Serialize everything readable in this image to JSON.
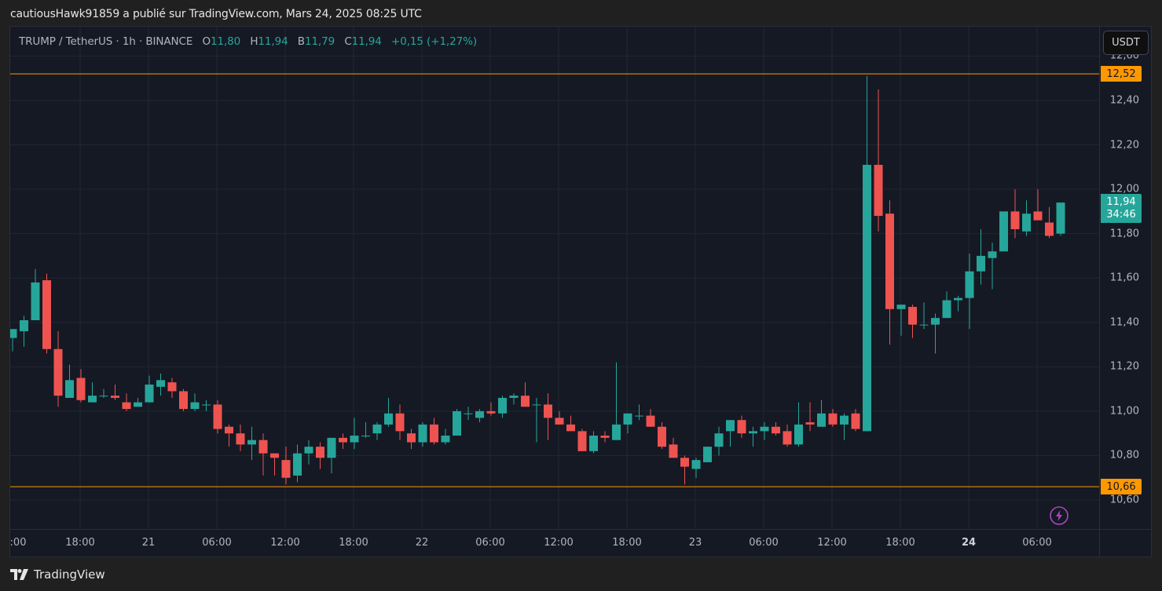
{
  "publisher_line": "cautiousHawk91859 a publié sur TradingView.com, Mars 24, 2025 08:25 UTC",
  "legend": {
    "symbol": "TRUMP / TetherUS · 1h · BINANCE",
    "o_label": "O",
    "o_value": "11,80",
    "h_label": "H",
    "h_value": "11,94",
    "b_label": "B",
    "b_value": "11,79",
    "c_label": "C",
    "c_value": "11,94",
    "change": "+0,15 (+1,27%)"
  },
  "currency_button": "USDT",
  "current_price": {
    "value": "11,94",
    "countdown": "34:46"
  },
  "horizontal_lines": [
    {
      "label": "12,52",
      "price": 12.52,
      "color": "#ff9800"
    },
    {
      "label": "10,66",
      "price": 10.66,
      "color": "#ff9800"
    }
  ],
  "price_ticks": [
    "12,60",
    "12,40",
    "12,20",
    "12,00",
    "11,80",
    "11,60",
    "11,40",
    "11,20",
    "11,00",
    "10,80",
    "10,60"
  ],
  "time_ticks": [
    {
      "label": ":00",
      "x": 13,
      "bold": false
    },
    {
      "label": "18:00",
      "x": 102,
      "bold": false
    },
    {
      "label": "21",
      "x": 189,
      "bold": false
    },
    {
      "label": "06:00",
      "x": 276,
      "bold": false
    },
    {
      "label": "12:00",
      "x": 363,
      "bold": false
    },
    {
      "label": "18:00",
      "x": 450,
      "bold": false
    },
    {
      "label": "22",
      "x": 537,
      "bold": false
    },
    {
      "label": "06:00",
      "x": 624,
      "bold": false
    },
    {
      "label": "12:00",
      "x": 711,
      "bold": false
    },
    {
      "label": "18:00",
      "x": 798,
      "bold": false
    },
    {
      "label": "23",
      "x": 885,
      "bold": false
    },
    {
      "label": "06:00",
      "x": 972,
      "bold": false
    },
    {
      "label": "12:00",
      "x": 1059,
      "bold": false
    },
    {
      "label": "18:00",
      "x": 1146,
      "bold": false
    },
    {
      "label": "24",
      "x": 1233,
      "bold": true
    },
    {
      "label": "06:00",
      "x": 1320,
      "bold": false
    }
  ],
  "footer": {
    "brand": "TradingView"
  },
  "colors": {
    "up": "#26a69a",
    "down": "#ef5350",
    "grid": "#232632",
    "background": "#151924",
    "level": "#ff9800",
    "alert": "#ab47bc"
  },
  "chart_data": {
    "type": "candlestick",
    "title": "TRUMP / TetherUS · 1h · BINANCE",
    "xlabel": "",
    "ylabel": "USDT",
    "ylim": [
      10.55,
      12.62
    ],
    "grid": true,
    "legend_position": "top-left",
    "x_start": "20 Mar 12:00",
    "interval": "1h",
    "x_ticks": [
      ":00",
      "18:00",
      "21",
      "06:00",
      "12:00",
      "18:00",
      "22",
      "06:00",
      "12:00",
      "18:00",
      "23",
      "06:00",
      "12:00",
      "18:00",
      "24",
      "06:00"
    ],
    "y_ticks": [
      10.6,
      10.8,
      11.0,
      11.2,
      11.4,
      11.6,
      11.8,
      12.0,
      12.2,
      12.4,
      12.6
    ],
    "levels": [
      12.52,
      10.66
    ],
    "last_price": 11.94,
    "candles": [
      {
        "o": 11.33,
        "h": 11.36,
        "l": 11.27,
        "c": 11.37
      },
      {
        "o": 11.36,
        "h": 11.43,
        "l": 11.29,
        "c": 11.41
      },
      {
        "o": 11.41,
        "h": 11.64,
        "l": 11.41,
        "c": 11.58
      },
      {
        "o": 11.59,
        "h": 11.62,
        "l": 11.26,
        "c": 11.28
      },
      {
        "o": 11.28,
        "h": 11.36,
        "l": 11.02,
        "c": 11.07
      },
      {
        "o": 11.06,
        "h": 11.21,
        "l": 11.06,
        "c": 11.14
      },
      {
        "o": 11.15,
        "h": 11.19,
        "l": 11.04,
        "c": 11.05
      },
      {
        "o": 11.04,
        "h": 11.13,
        "l": 11.04,
        "c": 11.07
      },
      {
        "o": 11.07,
        "h": 11.1,
        "l": 11.06,
        "c": 11.07
      },
      {
        "o": 11.07,
        "h": 11.12,
        "l": 11.05,
        "c": 11.06
      },
      {
        "o": 11.04,
        "h": 11.08,
        "l": 11.0,
        "c": 11.01
      },
      {
        "o": 11.02,
        "h": 11.06,
        "l": 11.02,
        "c": 11.04
      },
      {
        "o": 11.04,
        "h": 11.16,
        "l": 11.04,
        "c": 11.12
      },
      {
        "o": 11.11,
        "h": 11.17,
        "l": 11.07,
        "c": 11.14
      },
      {
        "o": 11.13,
        "h": 11.15,
        "l": 11.06,
        "c": 11.09
      },
      {
        "o": 11.09,
        "h": 11.1,
        "l": 11.0,
        "c": 11.01
      },
      {
        "o": 11.01,
        "h": 11.08,
        "l": 11.0,
        "c": 11.04
      },
      {
        "o": 11.03,
        "h": 11.05,
        "l": 11.0,
        "c": 11.03
      },
      {
        "o": 11.03,
        "h": 11.05,
        "l": 10.9,
        "c": 10.92
      },
      {
        "o": 10.93,
        "h": 10.94,
        "l": 10.84,
        "c": 10.9
      },
      {
        "o": 10.9,
        "h": 10.94,
        "l": 10.82,
        "c": 10.85
      },
      {
        "o": 10.85,
        "h": 10.93,
        "l": 10.78,
        "c": 10.87
      },
      {
        "o": 10.87,
        "h": 10.9,
        "l": 10.71,
        "c": 10.81
      },
      {
        "o": 10.81,
        "h": 10.81,
        "l": 10.71,
        "c": 10.79
      },
      {
        "o": 10.78,
        "h": 10.84,
        "l": 10.67,
        "c": 10.7
      },
      {
        "o": 10.71,
        "h": 10.85,
        "l": 10.68,
        "c": 10.81
      },
      {
        "o": 10.81,
        "h": 10.87,
        "l": 10.76,
        "c": 10.84
      },
      {
        "o": 10.84,
        "h": 10.86,
        "l": 10.74,
        "c": 10.79
      },
      {
        "o": 10.79,
        "h": 10.88,
        "l": 10.72,
        "c": 10.88
      },
      {
        "o": 10.88,
        "h": 10.9,
        "l": 10.83,
        "c": 10.86
      },
      {
        "o": 10.86,
        "h": 10.97,
        "l": 10.83,
        "c": 10.89
      },
      {
        "o": 10.89,
        "h": 10.95,
        "l": 10.88,
        "c": 10.89
      },
      {
        "o": 10.9,
        "h": 10.95,
        "l": 10.87,
        "c": 10.94
      },
      {
        "o": 10.94,
        "h": 11.06,
        "l": 10.93,
        "c": 10.99
      },
      {
        "o": 10.99,
        "h": 11.03,
        "l": 10.87,
        "c": 10.91
      },
      {
        "o": 10.9,
        "h": 10.92,
        "l": 10.83,
        "c": 10.86
      },
      {
        "o": 10.86,
        "h": 10.95,
        "l": 10.84,
        "c": 10.94
      },
      {
        "o": 10.94,
        "h": 10.97,
        "l": 10.85,
        "c": 10.86
      },
      {
        "o": 10.86,
        "h": 10.92,
        "l": 10.85,
        "c": 10.89
      },
      {
        "o": 10.89,
        "h": 11.01,
        "l": 10.89,
        "c": 11.0
      },
      {
        "o": 10.99,
        "h": 11.02,
        "l": 10.96,
        "c": 10.99
      },
      {
        "o": 10.97,
        "h": 11.01,
        "l": 10.95,
        "c": 11.0
      },
      {
        "o": 11.0,
        "h": 11.04,
        "l": 10.98,
        "c": 10.99
      },
      {
        "o": 10.99,
        "h": 11.07,
        "l": 10.97,
        "c": 11.06
      },
      {
        "o": 11.06,
        "h": 11.08,
        "l": 11.03,
        "c": 11.07
      },
      {
        "o": 11.07,
        "h": 11.13,
        "l": 11.02,
        "c": 11.02
      },
      {
        "o": 11.03,
        "h": 11.06,
        "l": 10.86,
        "c": 11.03
      },
      {
        "o": 11.03,
        "h": 11.08,
        "l": 10.87,
        "c": 10.97
      },
      {
        "o": 10.97,
        "h": 11.0,
        "l": 10.94,
        "c": 10.94
      },
      {
        "o": 10.94,
        "h": 10.98,
        "l": 10.92,
        "c": 10.91
      },
      {
        "o": 10.91,
        "h": 10.92,
        "l": 10.82,
        "c": 10.82
      },
      {
        "o": 10.82,
        "h": 10.91,
        "l": 10.81,
        "c": 10.89
      },
      {
        "o": 10.89,
        "h": 10.91,
        "l": 10.86,
        "c": 10.88
      },
      {
        "o": 10.87,
        "h": 11.22,
        "l": 10.87,
        "c": 10.94
      },
      {
        "o": 10.94,
        "h": 10.99,
        "l": 10.9,
        "c": 10.99
      },
      {
        "o": 10.98,
        "h": 11.03,
        "l": 10.96,
        "c": 10.98
      },
      {
        "o": 10.98,
        "h": 11.01,
        "l": 10.93,
        "c": 10.93
      },
      {
        "o": 10.93,
        "h": 10.95,
        "l": 10.83,
        "c": 10.84
      },
      {
        "o": 10.85,
        "h": 10.88,
        "l": 10.79,
        "c": 10.79
      },
      {
        "o": 10.79,
        "h": 10.8,
        "l": 10.67,
        "c": 10.75
      },
      {
        "o": 10.74,
        "h": 10.79,
        "l": 10.7,
        "c": 10.78
      },
      {
        "o": 10.77,
        "h": 10.84,
        "l": 10.77,
        "c": 10.84
      },
      {
        "o": 10.84,
        "h": 10.93,
        "l": 10.8,
        "c": 10.9
      },
      {
        "o": 10.91,
        "h": 10.96,
        "l": 10.84,
        "c": 10.96
      },
      {
        "o": 10.96,
        "h": 10.98,
        "l": 10.88,
        "c": 10.9
      },
      {
        "o": 10.9,
        "h": 10.93,
        "l": 10.84,
        "c": 10.91
      },
      {
        "o": 10.91,
        "h": 10.95,
        "l": 10.87,
        "c": 10.93
      },
      {
        "o": 10.93,
        "h": 10.95,
        "l": 10.89,
        "c": 10.9
      },
      {
        "o": 10.91,
        "h": 10.94,
        "l": 10.84,
        "c": 10.85
      },
      {
        "o": 10.85,
        "h": 11.04,
        "l": 10.84,
        "c": 10.94
      },
      {
        "o": 10.95,
        "h": 11.04,
        "l": 10.91,
        "c": 10.94
      },
      {
        "o": 10.93,
        "h": 11.05,
        "l": 10.93,
        "c": 10.99
      },
      {
        "o": 10.99,
        "h": 11.01,
        "l": 10.93,
        "c": 10.94
      },
      {
        "o": 10.94,
        "h": 10.99,
        "l": 10.87,
        "c": 10.98
      },
      {
        "o": 10.99,
        "h": 11.01,
        "l": 10.91,
        "c": 10.92
      },
      {
        "o": 10.91,
        "h": 12.51,
        "l": 10.91,
        "c": 12.11
      },
      {
        "o": 12.11,
        "h": 12.45,
        "l": 11.81,
        "c": 11.88
      },
      {
        "o": 11.89,
        "h": 11.95,
        "l": 11.3,
        "c": 11.46
      },
      {
        "o": 11.46,
        "h": 11.48,
        "l": 11.34,
        "c": 11.48
      },
      {
        "o": 11.47,
        "h": 11.48,
        "l": 11.33,
        "c": 11.39
      },
      {
        "o": 11.39,
        "h": 11.49,
        "l": 11.37,
        "c": 11.39
      },
      {
        "o": 11.39,
        "h": 11.44,
        "l": 11.26,
        "c": 11.42
      },
      {
        "o": 11.42,
        "h": 11.54,
        "l": 11.42,
        "c": 11.5
      },
      {
        "o": 11.5,
        "h": 11.52,
        "l": 11.45,
        "c": 11.51
      },
      {
        "o": 11.51,
        "h": 11.71,
        "l": 11.37,
        "c": 11.63
      },
      {
        "o": 11.63,
        "h": 11.82,
        "l": 11.57,
        "c": 11.7
      },
      {
        "o": 11.69,
        "h": 11.76,
        "l": 11.55,
        "c": 11.72
      },
      {
        "o": 11.72,
        "h": 11.88,
        "l": 11.72,
        "c": 11.9
      },
      {
        "o": 11.9,
        "h": 12.0,
        "l": 11.78,
        "c": 11.82
      },
      {
        "o": 11.81,
        "h": 11.95,
        "l": 11.79,
        "c": 11.89
      },
      {
        "o": 11.9,
        "h": 12.0,
        "l": 11.87,
        "c": 11.86
      },
      {
        "o": 11.85,
        "h": 11.92,
        "l": 11.78,
        "c": 11.79
      },
      {
        "o": 11.8,
        "h": 11.94,
        "l": 11.79,
        "c": 11.94
      }
    ]
  }
}
